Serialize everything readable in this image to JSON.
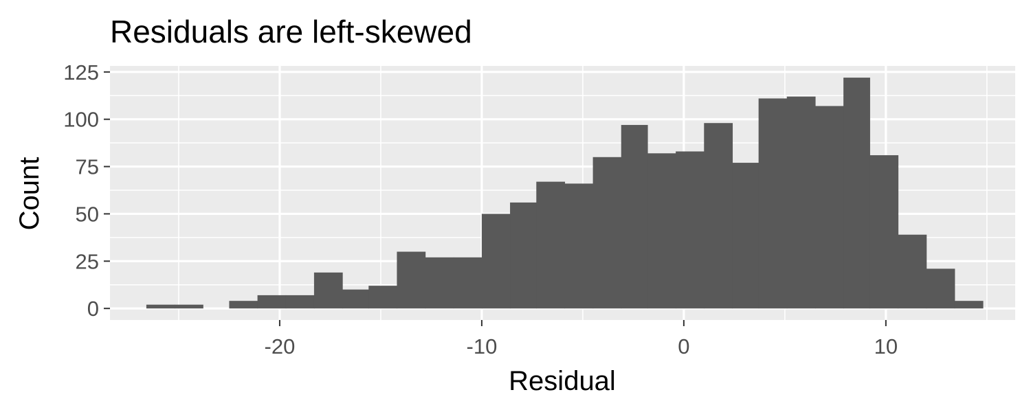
{
  "chart_data": {
    "type": "bar",
    "title": "Residuals are left-skewed",
    "xlabel": "Residual",
    "ylabel": "Count",
    "xlim": [
      -28.4,
      16.4
    ],
    "ylim": [
      -6.1,
      128.2
    ],
    "x_ticks": [
      -20,
      -10,
      0,
      10
    ],
    "x_tick_labels": [
      "-20",
      "-10",
      "0",
      "10"
    ],
    "x_minor_ticks": [
      -25,
      -15,
      -5,
      5,
      15
    ],
    "y_ticks": [
      0,
      25,
      50,
      75,
      100,
      125
    ],
    "y_tick_labels": [
      "0",
      "25",
      "50",
      "75",
      "100",
      "125"
    ],
    "y_minor_ticks": [
      12.5,
      37.5,
      62.5,
      87.5,
      112.5
    ],
    "bin_width": 1.38,
    "bins": [
      {
        "x0": -26.6,
        "x1": -25.2,
        "count": 2
      },
      {
        "x0": -25.2,
        "x1": -23.8,
        "count": 2
      },
      {
        "x0": -23.8,
        "x1": -22.5,
        "count": 0
      },
      {
        "x0": -22.5,
        "x1": -21.1,
        "count": 4
      },
      {
        "x0": -21.1,
        "x1": -19.7,
        "count": 7
      },
      {
        "x0": -19.7,
        "x1": -18.3,
        "count": 7
      },
      {
        "x0": -18.3,
        "x1": -16.9,
        "count": 19
      },
      {
        "x0": -16.9,
        "x1": -15.6,
        "count": 10
      },
      {
        "x0": -15.6,
        "x1": -14.2,
        "count": 12
      },
      {
        "x0": -14.2,
        "x1": -12.8,
        "count": 30
      },
      {
        "x0": -12.8,
        "x1": -11.4,
        "count": 27
      },
      {
        "x0": -11.4,
        "x1": -10.0,
        "count": 27
      },
      {
        "x0": -10.0,
        "x1": -8.6,
        "count": 50
      },
      {
        "x0": -8.6,
        "x1": -7.3,
        "count": 56
      },
      {
        "x0": -7.3,
        "x1": -5.9,
        "count": 67
      },
      {
        "x0": -5.9,
        "x1": -4.5,
        "count": 66
      },
      {
        "x0": -4.5,
        "x1": -3.1,
        "count": 80
      },
      {
        "x0": -3.1,
        "x1": -1.8,
        "count": 97
      },
      {
        "x0": -1.8,
        "x1": -0.4,
        "count": 82
      },
      {
        "x0": -0.4,
        "x1": 1.0,
        "count": 83
      },
      {
        "x0": 1.0,
        "x1": 2.4,
        "count": 98
      },
      {
        "x0": 2.4,
        "x1": 3.7,
        "count": 77
      },
      {
        "x0": 3.7,
        "x1": 5.1,
        "count": 111
      },
      {
        "x0": 5.1,
        "x1": 6.5,
        "count": 112
      },
      {
        "x0": 6.5,
        "x1": 7.9,
        "count": 107
      },
      {
        "x0": 7.9,
        "x1": 9.2,
        "count": 122
      },
      {
        "x0": 9.2,
        "x1": 10.6,
        "count": 81
      },
      {
        "x0": 10.6,
        "x1": 12.0,
        "count": 39
      },
      {
        "x0": 12.0,
        "x1": 13.4,
        "count": 21
      },
      {
        "x0": 13.4,
        "x1": 14.8,
        "count": 4
      }
    ],
    "grid": true,
    "legend": "none",
    "colors": {
      "bar": "#595959",
      "panel_background": "#ebebeb",
      "grid": "#ffffff",
      "tick": "#333333"
    }
  }
}
